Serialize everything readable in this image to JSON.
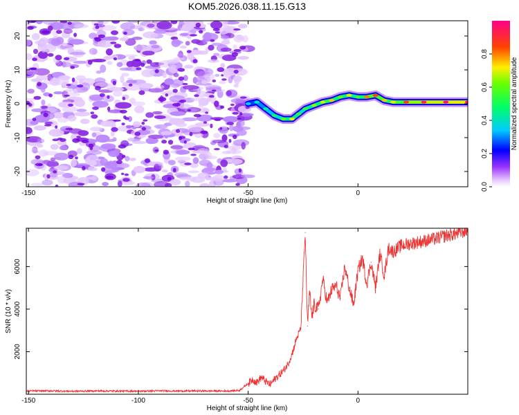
{
  "title": "KOM5.2026.038.11.15.G13",
  "chart_data": [
    {
      "type": "heatmap",
      "name": "spectrogram",
      "xlabel": "Height of straight line (km)",
      "ylabel": "Frequency (Hz)",
      "xlim": [
        -151,
        50
      ],
      "ylim": [
        -24.5,
        24.5
      ],
      "xticks": [
        -150,
        -100,
        -50,
        0
      ],
      "yticks": [
        -20,
        -10,
        0,
        10,
        20
      ],
      "colorbar": {
        "label": "Normalized spectral amplitude",
        "range": [
          0.0,
          1.0
        ],
        "ticks": [
          0.0,
          0.2,
          0.4,
          0.6,
          0.8
        ],
        "tick_labels": [
          "0.0",
          "0.2",
          "0.4",
          "0.6",
          "0.8"
        ],
        "colors": [
          "#ffffff",
          "#cc88ff",
          "#8800ff",
          "#0000ff",
          "#00ffff",
          "#00ff00",
          "#ffff00",
          "#ff0000",
          "#ff0088"
        ]
      },
      "noise_region_x": [
        -151,
        -50
      ],
      "signal_ridge": {
        "x": [
          -50,
          -46,
          -42,
          -38,
          -34,
          -30,
          -27,
          -24,
          -20,
          -16,
          -12,
          -8,
          -4,
          0,
          4,
          8,
          12,
          16,
          22,
          30,
          40,
          50
        ],
        "frequency": [
          0,
          0.5,
          -1.5,
          -3.5,
          -4.5,
          -4.5,
          -3,
          -1.5,
          -0.5,
          0.5,
          1,
          2,
          2.5,
          2,
          2,
          2.5,
          1,
          0.5,
          0.5,
          0.5,
          0.5,
          0.5
        ],
        "amplitude": [
          0.35,
          0.4,
          0.45,
          0.5,
          0.6,
          0.7,
          0.55,
          0.55,
          0.65,
          0.7,
          0.75,
          0.6,
          0.7,
          0.55,
          0.8,
          0.85,
          0.75,
          0.7,
          0.9,
          0.95,
          1.0,
          1.0
        ]
      }
    },
    {
      "type": "line",
      "name": "snr",
      "xlabel": "Height of straight line (km)",
      "ylabel": "SNR (10 * v/v)",
      "xlim": [
        -151,
        50
      ],
      "ylim": [
        0,
        7800
      ],
      "xticks": [
        -150,
        -100,
        -50,
        0
      ],
      "yticks": [
        2000,
        4000,
        6000
      ],
      "series": [
        {
          "name": "SNR",
          "color": "#ee3333",
          "x": [
            -151,
            -140,
            -130,
            -120,
            -110,
            -100,
            -90,
            -80,
            -70,
            -60,
            -54,
            -50,
            -48,
            -46,
            -44,
            -42,
            -40,
            -38,
            -36,
            -34,
            -32,
            -30,
            -28,
            -26,
            -24,
            -23,
            -22,
            -21,
            -20,
            -18,
            -16,
            -14,
            -12,
            -10,
            -8,
            -6,
            -4,
            -2,
            0,
            2,
            4,
            6,
            8,
            10,
            12,
            14,
            16,
            20,
            25,
            30,
            35,
            40,
            45,
            50
          ],
          "y": [
            150,
            160,
            140,
            155,
            150,
            145,
            160,
            150,
            155,
            150,
            180,
            500,
            700,
            550,
            800,
            600,
            450,
            700,
            900,
            1100,
            1400,
            1900,
            2600,
            3100,
            7600,
            3200,
            4800,
            3600,
            4200,
            4000,
            5400,
            4300,
            4900,
            5100,
            4500,
            6000,
            5000,
            4200,
            5800,
            6400,
            5200,
            6200,
            5000,
            6600,
            5600,
            6900,
            6700,
            7000,
            7100,
            7200,
            7300,
            7450,
            7550,
            7700
          ]
        }
      ]
    }
  ]
}
